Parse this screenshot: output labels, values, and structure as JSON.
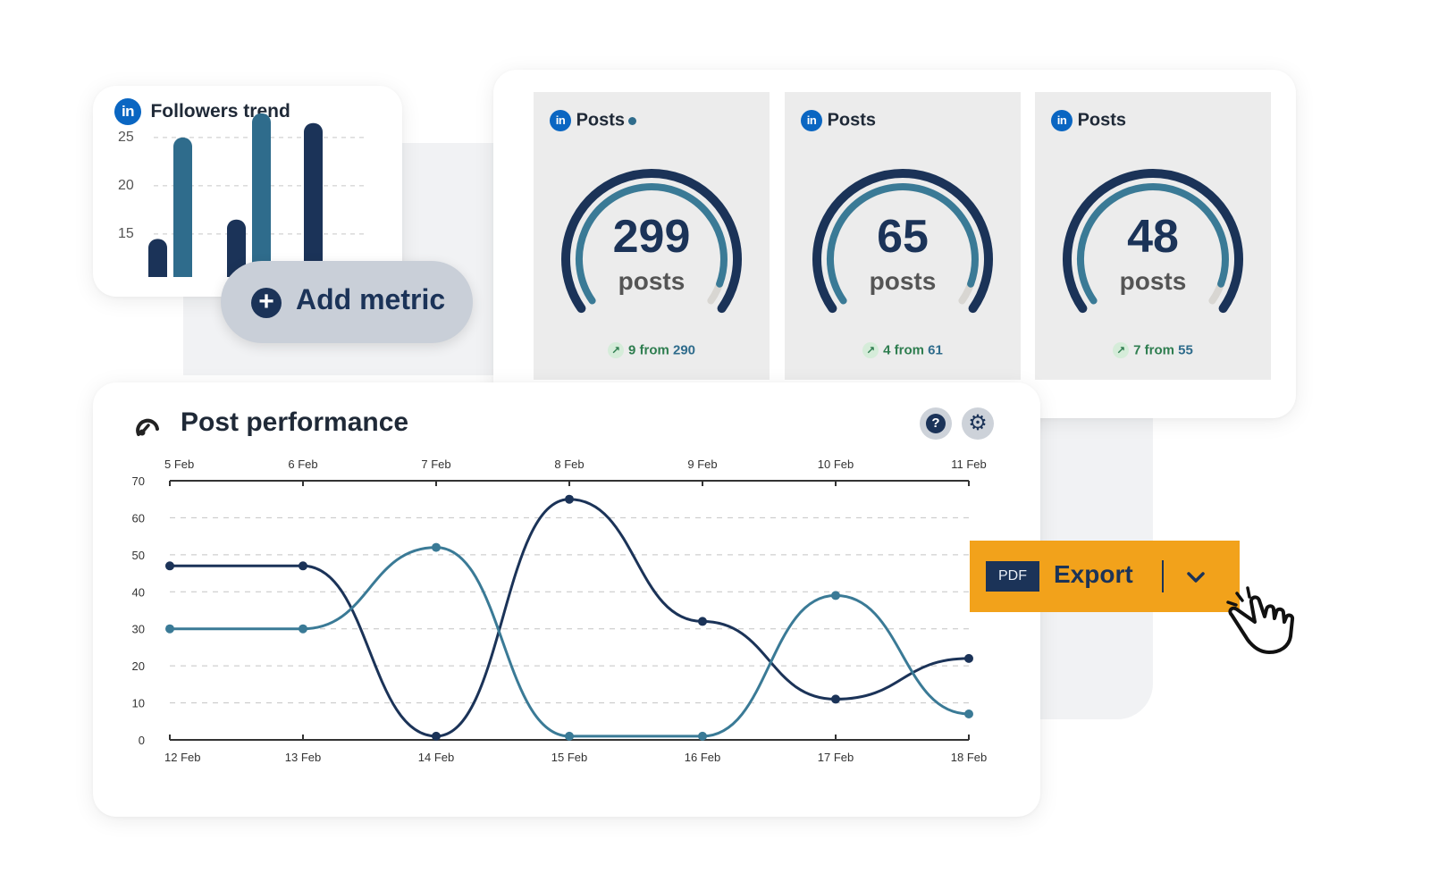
{
  "followers_trend": {
    "title": "Followers trend",
    "y_ticks": [
      "25",
      "20",
      "15"
    ],
    "bars": [
      {
        "value": 14.5,
        "color": "#1b3358"
      },
      {
        "value": 25,
        "color": "#2f6c8c"
      },
      {
        "value": 16.5,
        "color": "#1b3358"
      },
      {
        "value": 27.5,
        "color": "#2f6c8c"
      },
      {
        "value": 26.5,
        "color": "#1b3358"
      }
    ]
  },
  "add_metric": {
    "label": "Add metric"
  },
  "posts_cards": [
    {
      "title": "Posts",
      "value": "299",
      "unit": "posts",
      "change": "9",
      "from_label": "from",
      "previous": "290",
      "fill": 0.94
    },
    {
      "title": "Posts",
      "value": "65",
      "unit": "posts",
      "change": "4",
      "from_label": "from",
      "previous": "61",
      "fill": 0.94
    },
    {
      "title": "Posts",
      "value": "48",
      "unit": "posts",
      "change": "7",
      "from_label": "from",
      "previous": "55",
      "fill": 0.94
    }
  ],
  "post_performance": {
    "title": "Post performance",
    "help_icon": "question-icon",
    "settings_icon": "gear-icon"
  },
  "export": {
    "badge": "PDF",
    "label": "Export"
  },
  "colors": {
    "navy": "#1b3358",
    "teal": "#3a7a96",
    "export": "#f2a21b",
    "linkedin": "#0a66c2"
  },
  "chart_data": {
    "type": "line",
    "ylim": [
      0,
      70
    ],
    "y_ticks": [
      "70",
      "60",
      "50",
      "40",
      "30",
      "20",
      "10",
      "0"
    ],
    "top_x_labels": [
      "5 Feb",
      "6 Feb",
      "7 Feb",
      "8 Feb",
      "9 Feb",
      "10 Feb",
      "11 Feb"
    ],
    "bottom_x_labels": [
      "12 Feb",
      "13 Feb",
      "14 Feb",
      "15 Feb",
      "16 Feb",
      "17 Feb",
      "18 Feb"
    ],
    "grid": true,
    "series": [
      {
        "axis": "top",
        "color": "#1b3358",
        "values": [
          47,
          47,
          1,
          65,
          32,
          11,
          22
        ]
      },
      {
        "axis": "bottom",
        "color": "#3a7a96",
        "values": [
          30,
          30,
          52,
          1,
          1,
          39,
          7
        ]
      }
    ]
  }
}
